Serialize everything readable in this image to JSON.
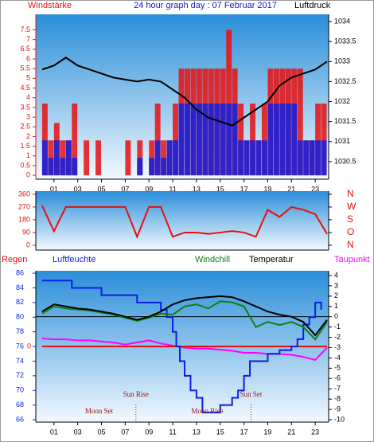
{
  "chart_data": [
    {
      "type": "bar",
      "title": "24 hour graph day : 07 Februar 2017",
      "y_label": "Windstärke",
      "y2_label": "Luftdruck",
      "xlim": [
        -0.53,
        24.13
      ],
      "xticks": [
        {
          "value": 1,
          "label": "01"
        },
        {
          "value": 3,
          "label": "03"
        },
        {
          "value": 5,
          "label": "05"
        },
        {
          "value": 7,
          "label": "07"
        },
        {
          "value": 9,
          "label": "09"
        },
        {
          "value": 11,
          "label": "11"
        },
        {
          "value": 13,
          "label": "13"
        },
        {
          "value": 15,
          "label": "15"
        },
        {
          "value": 17,
          "label": "17"
        },
        {
          "value": 19,
          "label": "19"
        },
        {
          "value": 21,
          "label": "21"
        },
        {
          "value": 23,
          "label": "23"
        }
      ],
      "ylim": [
        -0.2,
        8.3
      ],
      "yticks": [
        0,
        0.5,
        1,
        1.5,
        2,
        2.5,
        3,
        3.5,
        4,
        4.5,
        5,
        5.5,
        6,
        6.5,
        7,
        7.5
      ],
      "y2lim": [
        1030.06,
        1034.18
      ],
      "y2ticks": [
        1030.5,
        1031,
        1031.5,
        1032,
        1032.5,
        1033,
        1033.5,
        1034
      ],
      "series": [
        {
          "style": "bar",
          "color": "#e81010",
          "axis": "y",
          "x": [
            0,
            0.5,
            1,
            1.5,
            2,
            2.5,
            3,
            3.5,
            4,
            4.5,
            5,
            5.5,
            6,
            6.5,
            7,
            7.5,
            8,
            8.5,
            9,
            9.5,
            10,
            10.5,
            11,
            11.5,
            12,
            12.5,
            13,
            13.5,
            14,
            14.5,
            15,
            15.5,
            16,
            16.5,
            17,
            17.5,
            18,
            18.5,
            19,
            19.5,
            20,
            20.5,
            21,
            21.5,
            22,
            22.5,
            23,
            23.5
          ],
          "values": [
            3.7,
            1.8,
            2.7,
            1.8,
            1.8,
            3.7,
            0,
            1.8,
            0,
            1.8,
            0,
            0,
            0,
            0,
            1.8,
            0,
            1.8,
            0,
            1.8,
            3.7,
            1.8,
            1.8,
            3.7,
            5.5,
            5.5,
            5.5,
            5.5,
            5.5,
            5.5,
            5.5,
            5.5,
            7.5,
            5.5,
            3.7,
            1.8,
            3.7,
            1.8,
            3.7,
            5.5,
            5.5,
            5.5,
            5.5,
            5.5,
            5.5,
            1.8,
            1.8,
            3.7,
            3.7
          ]
        },
        {
          "style": "bar",
          "color": "#1020e0",
          "axis": "y",
          "x": [
            0,
            0.5,
            1,
            1.5,
            2,
            2.5,
            3,
            3.5,
            4,
            4.5,
            5,
            5.5,
            6,
            6.5,
            7,
            7.5,
            8,
            8.5,
            9,
            9.5,
            10,
            10.5,
            11,
            11.5,
            12,
            12.5,
            13,
            13.5,
            14,
            14.5,
            15,
            15.5,
            16,
            16.5,
            17,
            17.5,
            18,
            18.5,
            19,
            19.5,
            20,
            20.5,
            21,
            21.5,
            22,
            22.5,
            23,
            23.5
          ],
          "values": [
            1.8,
            0.9,
            1.8,
            0.9,
            1.8,
            0.9,
            0,
            0,
            0,
            0,
            0,
            0,
            0,
            0,
            0,
            0,
            0.9,
            0,
            0.9,
            1.8,
            0.9,
            1.8,
            1.8,
            3.7,
            3.7,
            3.7,
            3.7,
            3.7,
            3.7,
            3.7,
            3.7,
            3.7,
            3.7,
            1.8,
            1.8,
            1.8,
            1.8,
            1.8,
            3.7,
            3.7,
            3.7,
            3.7,
            3.7,
            1.8,
            1.8,
            1.8,
            1.8,
            1.8
          ]
        },
        {
          "style": "line",
          "color": "#000000",
          "axis": "y2",
          "x": [
            0,
            1,
            2,
            3,
            4,
            5,
            6,
            7,
            8,
            9,
            10,
            11,
            12,
            13,
            14,
            15,
            16,
            17,
            18,
            19,
            20,
            21,
            22,
            23,
            24
          ],
          "values": [
            1032.8,
            1032.9,
            1033.1,
            1032.9,
            1032.8,
            1032.7,
            1032.6,
            1032.55,
            1032.5,
            1032.55,
            1032.5,
            1032.3,
            1032.1,
            1031.8,
            1031.6,
            1031.5,
            1031.4,
            1031.6,
            1031.8,
            1032.0,
            1032.4,
            1032.6,
            1032.7,
            1032.8,
            1033.0
          ]
        }
      ]
    },
    {
      "type": "line",
      "xlim": [
        -0.53,
        24.13
      ],
      "ylim": [
        -34,
        382
      ],
      "yticks": [
        0,
        90,
        180,
        270,
        360
      ],
      "y2lim": [
        -34,
        382
      ],
      "y2ticks": [
        {
          "value": 360,
          "label": "N"
        },
        {
          "value": 270,
          "label": "W"
        },
        {
          "value": 180,
          "label": "S"
        },
        {
          "value": 90,
          "label": "O"
        },
        {
          "value": 0,
          "label": "N"
        }
      ],
      "series": [
        {
          "style": "line",
          "color": "#e81010",
          "axis": "y",
          "x": [
            0,
            1,
            2,
            3,
            4,
            5,
            6,
            7,
            8,
            9,
            10,
            11,
            12,
            13,
            14,
            15,
            16,
            17,
            18,
            19,
            20,
            21,
            22,
            23,
            24
          ],
          "values": [
            280,
            100,
            270,
            270,
            270,
            270,
            270,
            270,
            60,
            270,
            270,
            60,
            90,
            90,
            80,
            90,
            100,
            90,
            60,
            250,
            200,
            270,
            250,
            220,
            80
          ]
        }
      ]
    },
    {
      "type": "line",
      "axis_labels": [
        "Regen",
        "Luftfeuchte",
        "Windchill",
        "Temperatur",
        "Taupunkt"
      ],
      "xlim": [
        -0.53,
        24.13
      ],
      "xticks": [
        {
          "value": 1,
          "label": "01"
        },
        {
          "value": 3,
          "label": "03"
        },
        {
          "value": 5,
          "label": "05"
        },
        {
          "value": 7,
          "label": "07"
        },
        {
          "value": 9,
          "label": "09"
        },
        {
          "value": 11,
          "label": "11"
        },
        {
          "value": 13,
          "label": "13"
        },
        {
          "value": 15,
          "label": "15"
        },
        {
          "value": 17,
          "label": "17"
        },
        {
          "value": 19,
          "label": "19"
        },
        {
          "value": 21,
          "label": "21"
        },
        {
          "value": 23,
          "label": "23"
        }
      ],
      "ylim": [
        65.68,
        86.33
      ],
      "yticks": [
        66,
        68,
        70,
        72,
        74,
        76,
        78,
        80,
        82,
        84,
        86
      ],
      "y2lim": [
        -10.23,
        4.46
      ],
      "y2ticks": [
        -10,
        -9,
        -8,
        -7,
        -6,
        -5,
        -4,
        -3,
        -2,
        -1,
        0,
        1,
        2,
        3,
        4
      ],
      "y3lim": [
        -10,
        10
      ],
      "y3ticks": [
        0
      ],
      "annotations": [
        {
          "text": "Sun Rise",
          "x": 7.9,
          "marker": true
        },
        {
          "text": "Moon Set",
          "x": 4.8,
          "marker": false
        },
        {
          "text": "Sun Set",
          "x": 17.6,
          "marker": true
        },
        {
          "text": "Moon Rise",
          "x": 13.9,
          "marker": false
        }
      ],
      "series": [
        {
          "style": "line",
          "color": "#ff00ff",
          "axis": "y2",
          "x": [
            0,
            1,
            2,
            3,
            4,
            5,
            6,
            7,
            8,
            9,
            10,
            11,
            12,
            13,
            14,
            15,
            16,
            17,
            18,
            19,
            20,
            21,
            22,
            23,
            24
          ],
          "values": [
            -2.1,
            -2.2,
            -2.2,
            -2.3,
            -2.3,
            -2.4,
            -2.5,
            -2.7,
            -2.5,
            -2.3,
            -2.6,
            -2.8,
            -3,
            -3.1,
            -3.1,
            -3.2,
            -3.3,
            -3.5,
            -3.5,
            -3.6,
            -3.6,
            -3.7,
            -3.9,
            -4.2,
            -3
          ]
        },
        {
          "style": "line",
          "color": "#e81010",
          "axis": "y3",
          "x": [
            0,
            24
          ],
          "values": [
            0,
            0
          ]
        },
        {
          "style": "step",
          "color": "#0a1ee6",
          "axis": "y",
          "x": [
            0,
            2.5,
            5,
            8,
            10,
            10.5,
            11,
            11.3,
            11.6,
            12,
            12.5,
            13,
            13.5,
            14.5,
            15,
            16,
            16.5,
            17,
            17.5,
            19,
            20,
            21,
            21.5,
            22,
            22.5,
            23,
            23.5
          ],
          "values": [
            85,
            84,
            83,
            82,
            81,
            80,
            78,
            76,
            74,
            72,
            70,
            69,
            67,
            67,
            68,
            69,
            70,
            72,
            74,
            75,
            75.5,
            76,
            77,
            79,
            80,
            82,
            81
          ]
        },
        {
          "style": "line",
          "color": "#108010",
          "axis": "y2",
          "x": [
            0,
            1,
            2,
            3,
            4,
            5,
            6,
            7,
            8,
            9,
            10,
            11,
            12,
            13,
            14,
            15,
            16,
            17,
            18,
            19,
            20,
            21,
            22,
            23,
            24
          ],
          "values": [
            0.3,
            1,
            0.8,
            0.7,
            0.6,
            0.4,
            0.2,
            -0.1,
            -0.4,
            -0.1,
            0.3,
            0.2,
            1,
            1.2,
            0.8,
            1.5,
            1.4,
            1,
            -1,
            -0.5,
            -0.8,
            -0.5,
            -1,
            -2.2,
            -0.5
          ]
        },
        {
          "style": "line",
          "color": "#000000",
          "axis": "y2",
          "x": [
            0,
            1,
            2,
            3,
            4,
            5,
            6,
            7,
            8,
            9,
            10,
            11,
            12,
            13,
            14,
            15,
            16,
            17,
            18,
            19,
            20,
            21,
            22,
            23,
            24
          ],
          "values": [
            0.5,
            1.2,
            1,
            0.8,
            0.7,
            0.5,
            0.3,
            0,
            -0.3,
            0,
            0.5,
            1.2,
            1.6,
            1.8,
            1.9,
            2,
            1.9,
            1.5,
            1,
            0.5,
            0.2,
            0,
            -0.5,
            -1.8,
            -0.3
          ]
        }
      ]
    }
  ]
}
